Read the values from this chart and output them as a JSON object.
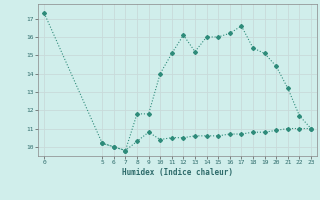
{
  "line1_x": [
    0,
    5,
    6,
    7,
    8,
    9,
    10,
    11,
    12,
    13,
    14,
    15,
    16,
    17,
    18,
    19,
    20,
    21,
    22,
    23
  ],
  "line1_y": [
    17.3,
    10.2,
    10.0,
    9.8,
    11.8,
    11.8,
    14.0,
    15.1,
    16.1,
    15.2,
    16.0,
    16.0,
    16.2,
    16.6,
    15.4,
    15.1,
    14.4,
    13.2,
    11.7,
    11.0
  ],
  "line2_x": [
    5,
    6,
    7,
    8,
    9,
    10,
    11,
    12,
    13,
    14,
    15,
    16,
    17,
    18,
    19,
    20,
    21,
    22,
    23
  ],
  "line2_y": [
    10.2,
    10.0,
    9.8,
    10.3,
    10.8,
    10.4,
    10.5,
    10.5,
    10.6,
    10.6,
    10.6,
    10.7,
    10.7,
    10.8,
    10.8,
    10.9,
    11.0,
    11.0,
    11.0
  ],
  "line_color": "#2e8b7a",
  "bg_color": "#d0eeeb",
  "grid_major_color": "#c8dada",
  "xlabel": "Humidex (Indice chaleur)",
  "xlim": [
    -0.5,
    23.5
  ],
  "ylim": [
    9.5,
    17.8
  ],
  "yticks": [
    10,
    11,
    12,
    13,
    14,
    15,
    16,
    17
  ],
  "xticks": [
    0,
    5,
    6,
    7,
    8,
    9,
    10,
    11,
    12,
    13,
    14,
    15,
    16,
    17,
    18,
    19,
    20,
    21,
    22,
    23
  ],
  "marker": "D",
  "marker_size": 2.0,
  "line_width": 0.8
}
